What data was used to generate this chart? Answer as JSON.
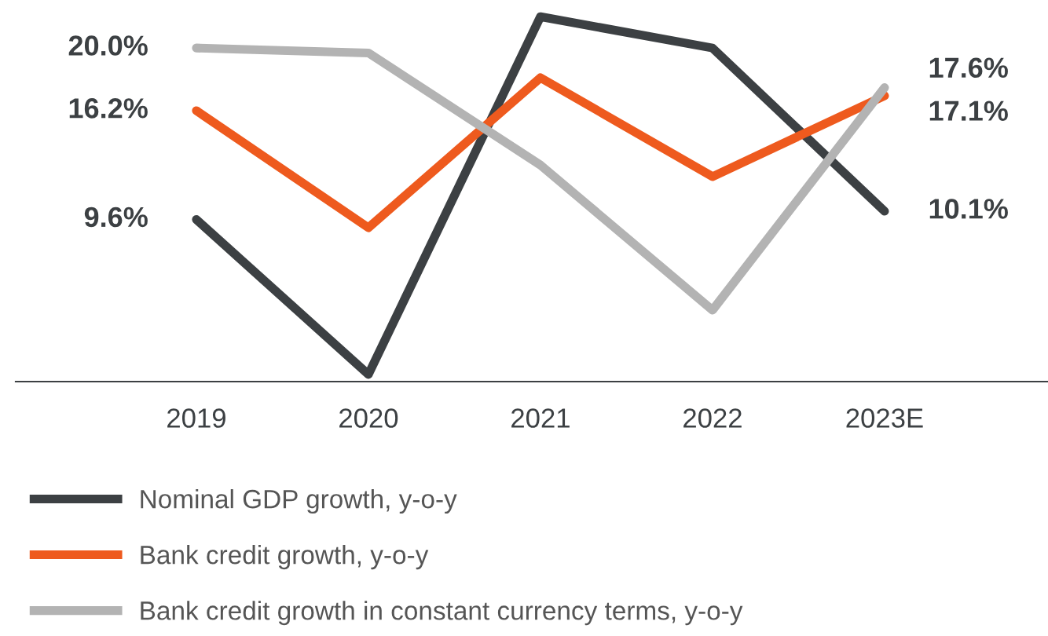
{
  "chart_data": {
    "type": "line",
    "categories": [
      "2019",
      "2020",
      "2021",
      "2022",
      "2023E"
    ],
    "tick_labels": "x",
    "legend": "bottom",
    "marker": "none",
    "line_style": "solid",
    "series": [
      {
        "name": "Nominal GDP growth, y-o-y",
        "color": "#3c4043",
        "values": [
          9.6,
          0.2,
          21.9,
          20.0,
          10.1
        ],
        "value_labels": [
          "9.6%",
          null,
          null,
          null,
          "10.1%"
        ]
      },
      {
        "name": "Bank credit growth, y-o-y",
        "color": "#ee5a1e",
        "values": [
          16.2,
          9.1,
          18.2,
          12.2,
          17.1
        ],
        "value_labels": [
          "16.2%",
          null,
          null,
          null,
          "17.1%"
        ]
      },
      {
        "name": "Bank credit growth in constant currency terms, y-o-y",
        "color": "#b3b3b3",
        "values": [
          20.0,
          19.7,
          12.9,
          4.1,
          17.6
        ],
        "value_labels": [
          "20.0%",
          null,
          null,
          null,
          "17.6%"
        ]
      }
    ]
  }
}
